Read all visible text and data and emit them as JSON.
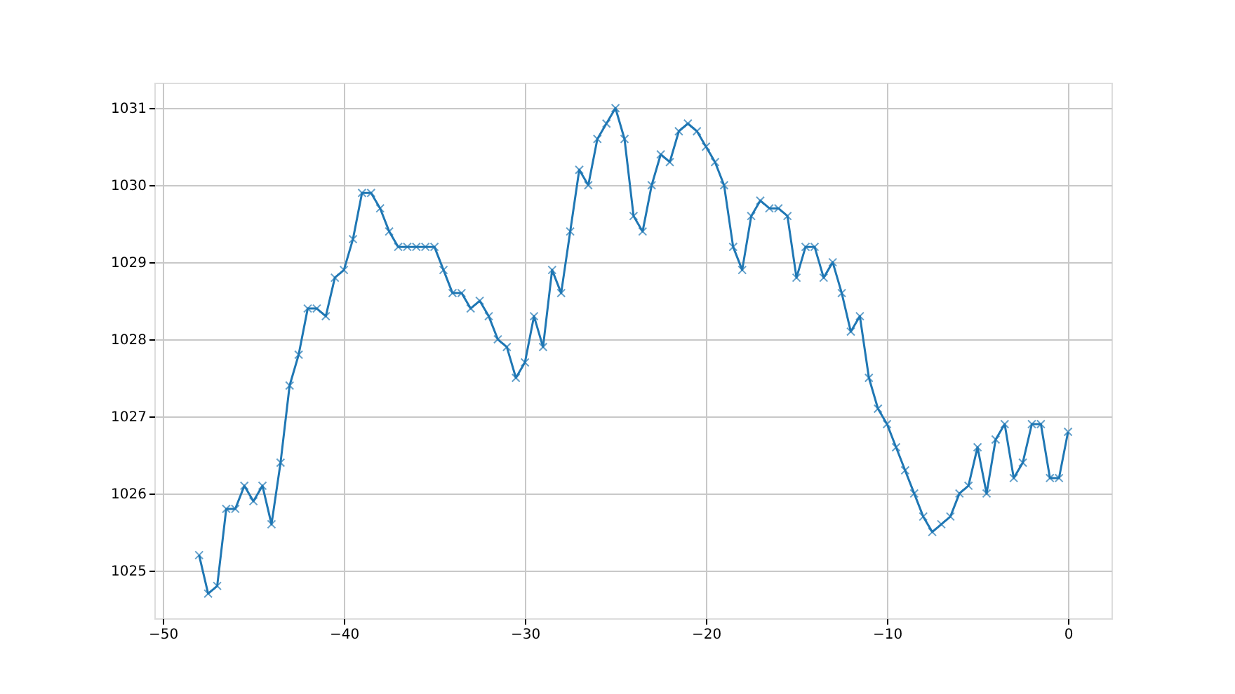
{
  "chart_data": {
    "type": "line",
    "x": [
      -48,
      -47.5,
      -47,
      -46.5,
      -46,
      -45.5,
      -45,
      -44.5,
      -44,
      -43.5,
      -43,
      -42.5,
      -42,
      -41.5,
      -41,
      -40.5,
      -40,
      -39.5,
      -39,
      -38.5,
      -38,
      -37.5,
      -37,
      -36.5,
      -36,
      -35.5,
      -35,
      -34.5,
      -34,
      -33.5,
      -33,
      -32.5,
      -32,
      -31.5,
      -31,
      -30.5,
      -30,
      -29.5,
      -29,
      -28.5,
      -28,
      -27.5,
      -27,
      -26.5,
      -26,
      -25.5,
      -25,
      -24.5,
      -24,
      -23.5,
      -23,
      -22.5,
      -22,
      -21.5,
      -21,
      -20.5,
      -20,
      -19.5,
      -19,
      -18.5,
      -18,
      -17.5,
      -17,
      -16.5,
      -16,
      -15.5,
      -15,
      -14.5,
      -14,
      -13.5,
      -13,
      -12.5,
      -12,
      -11.5,
      -11,
      -10.5,
      -10,
      -9.5,
      -9,
      -8.5,
      -8,
      -7.5,
      -7,
      -6.5,
      -6,
      -5.5,
      -5,
      -4.5,
      -4,
      -3.5,
      -3,
      -2.5,
      -2,
      -1.5,
      -1,
      -0.5,
      0
    ],
    "series": [
      {
        "color": "#1f77b4",
        "values": [
          1025.2,
          1024.7,
          1024.8,
          1025.8,
          1025.8,
          1026.1,
          1025.9,
          1026.1,
          1025.6,
          1026.4,
          1027.4,
          1027.8,
          1028.4,
          1028.4,
          1028.3,
          1028.8,
          1028.9,
          1029.3,
          1029.9,
          1029.9,
          1029.7,
          1029.4,
          1029.2,
          1029.2,
          1029.2,
          1029.2,
          1029.2,
          1028.9,
          1028.6,
          1028.6,
          1028.4,
          1028.5,
          1028.3,
          1028.0,
          1027.9,
          1027.5,
          1027.7,
          1028.3,
          1027.9,
          1028.9,
          1028.6,
          1029.4,
          1030.2,
          1030.0,
          1030.6,
          1030.8,
          1031.0,
          1030.6,
          1029.6,
          1029.4,
          1030.0,
          1030.4,
          1030.3,
          1030.7,
          1030.8,
          1030.7,
          1030.5,
          1030.3,
          1030.0,
          1029.2,
          1028.9,
          1029.6,
          1029.8,
          1029.7,
          1029.7,
          1029.6,
          1028.8,
          1029.2,
          1029.2,
          1028.8,
          1029.0,
          1028.6,
          1028.1,
          1028.3,
          1027.5,
          1027.1,
          1026.9,
          1026.6,
          1026.3,
          1026.0,
          1025.7,
          1025.5,
          1025.6,
          1025.7,
          1026.0,
          1026.1,
          1026.6,
          1026.0,
          1026.7,
          1026.9,
          1026.2,
          1026.4,
          1026.9,
          1026.9,
          1026.2,
          1026.2,
          1026.8
        ]
      }
    ],
    "xlim": [
      -50.47,
      2.4
    ],
    "ylim": [
      1024.38,
      1031.33
    ],
    "xticks": [
      -50,
      -40,
      -30,
      -20,
      -10,
      0
    ],
    "yticks": [
      1025,
      1026,
      1027,
      1028,
      1029,
      1030,
      1031
    ],
    "grid": true,
    "marker": "cross",
    "line_style": "solid"
  }
}
